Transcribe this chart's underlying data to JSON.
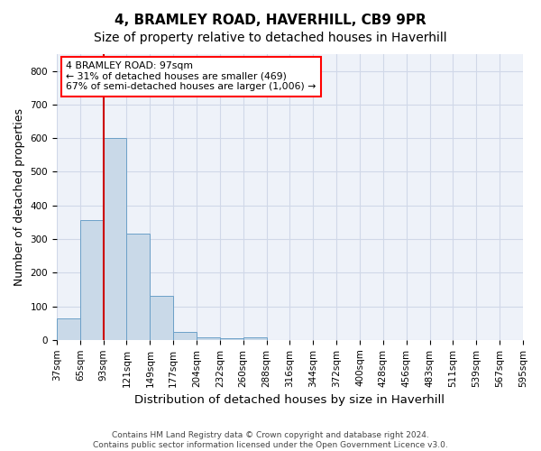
{
  "title": "4, BRAMLEY ROAD, HAVERHILL, CB9 9PR",
  "subtitle": "Size of property relative to detached houses in Haverhill",
  "xlabel": "Distribution of detached houses by size in Haverhill",
  "ylabel": "Number of detached properties",
  "footer_line1": "Contains HM Land Registry data © Crown copyright and database right 2024.",
  "footer_line2": "Contains public sector information licensed under the Open Government Licence v3.0.",
  "bin_labels": [
    "37sqm",
    "65sqm",
    "93sqm",
    "121sqm",
    "149sqm",
    "177sqm",
    "204sqm",
    "232sqm",
    "260sqm",
    "288sqm",
    "316sqm",
    "344sqm",
    "372sqm",
    "400sqm",
    "428sqm",
    "456sqm",
    "483sqm",
    "511sqm",
    "539sqm",
    "567sqm",
    "595sqm"
  ],
  "bar_values": [
    65,
    357,
    600,
    315,
    130,
    25,
    8,
    6,
    8,
    0,
    0,
    0,
    0,
    0,
    0,
    0,
    0,
    0,
    0,
    0
  ],
  "bar_color": "#c9d9e8",
  "bar_edgecolor": "#6ca0c8",
  "vline_x": 2,
  "vline_color": "#cc0000",
  "annotation_line1": "4 BRAMLEY ROAD: 97sqm",
  "annotation_line2": "← 31% of detached houses are smaller (469)",
  "annotation_line3": "67% of semi-detached houses are larger (1,006) →",
  "ylim": [
    0,
    850
  ],
  "yticks": [
    0,
    100,
    200,
    300,
    400,
    500,
    600,
    700,
    800
  ],
  "grid_color": "#d0d8e8",
  "bg_color": "#eef2f9",
  "title_fontsize": 11,
  "subtitle_fontsize": 10,
  "ylabel_fontsize": 9,
  "xlabel_fontsize": 9.5,
  "tick_fontsize": 7.5,
  "footer_fontsize": 6.5
}
